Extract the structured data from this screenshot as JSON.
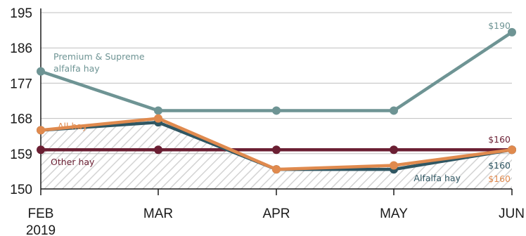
{
  "chart_data": {
    "type": "line",
    "title": "",
    "xlabel": "",
    "ylabel": "",
    "categories": [
      "FEB 2019",
      "MAR",
      "APR",
      "MAY",
      "JUN"
    ],
    "x_tick_labels": [
      [
        "FEB",
        "2019"
      ],
      [
        "MAR"
      ],
      [
        "APR"
      ],
      [
        "MAY"
      ],
      [
        "JUN"
      ]
    ],
    "y_ticks": [
      150,
      159,
      168,
      177,
      186,
      195
    ],
    "ylim": [
      150,
      195
    ],
    "grid": "horizontal",
    "series": [
      {
        "name": "Premium & Supreme alfalfa hay",
        "label_lines": [
          "Premium & Supreme",
          "alfalfa hay"
        ],
        "color": "#6e9494",
        "values": [
          180,
          170,
          170,
          170,
          190
        ]
      },
      {
        "name": "Other hay",
        "label_lines": [
          "Other hay"
        ],
        "color": "#6b1f33",
        "values": [
          160,
          160,
          160,
          160,
          160
        ]
      },
      {
        "name": "Alfalfa hay",
        "label_lines": [
          "Alfalfa hay"
        ],
        "color": "#2f5662",
        "values": [
          165,
          167,
          155,
          155,
          160
        ]
      },
      {
        "name": "All hay",
        "label_lines": [
          "All hay"
        ],
        "color": "#e08a4e",
        "values": [
          165,
          168,
          155,
          156,
          160
        ]
      }
    ],
    "value_labels": [
      {
        "series": 0,
        "index": 4,
        "text": "$190"
      },
      {
        "series": 1,
        "index": 4,
        "text": "$160"
      },
      {
        "series": 2,
        "index": 4,
        "text": "$160"
      },
      {
        "series": 3,
        "index": 4,
        "text": "$160"
      }
    ],
    "colors": {
      "axis": "#1a1a1a",
      "grid": "#bfbfbf",
      "hatch": "#d3d3d3"
    }
  }
}
